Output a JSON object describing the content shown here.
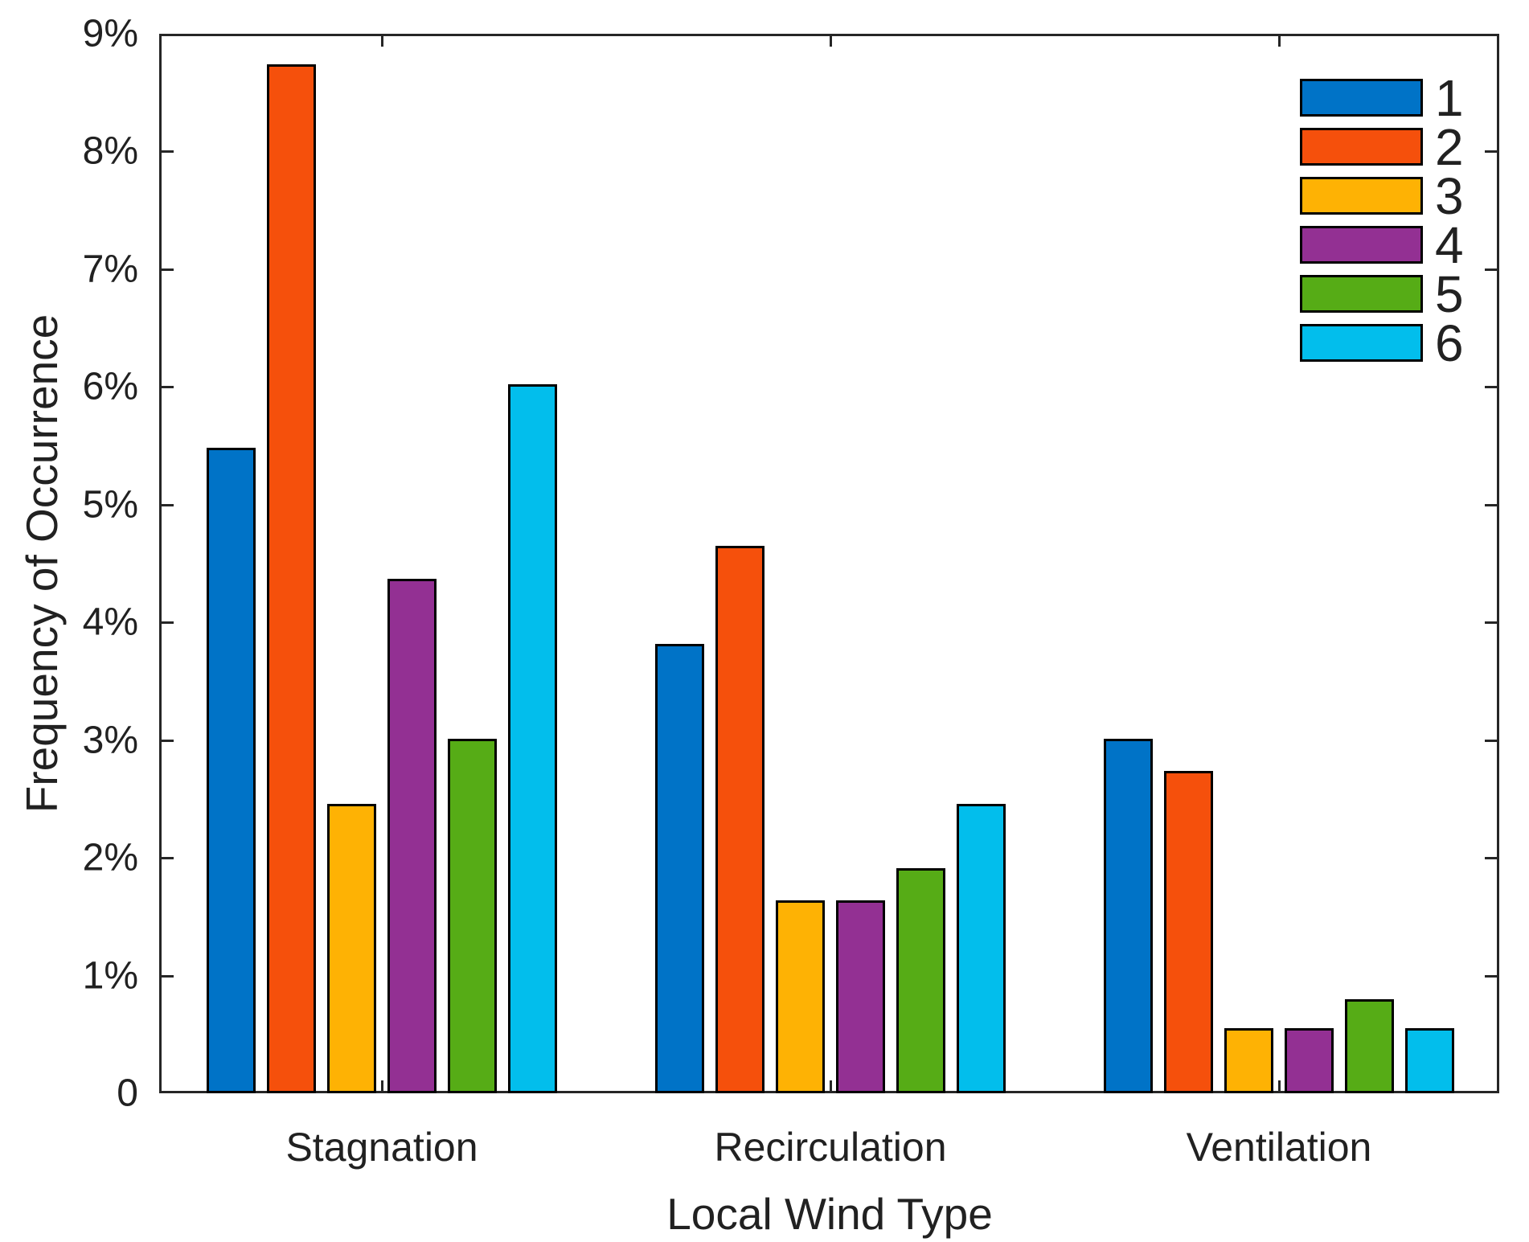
{
  "chart_data": {
    "type": "bar",
    "title": "",
    "xlabel": "Local Wind Type",
    "ylabel": "Frequency of Occurrence",
    "categories": [
      "Stagnation",
      "Recirculation",
      "Ventilation"
    ],
    "series": [
      {
        "name": "1",
        "color": "#0073C7",
        "values": [
          5.48,
          3.82,
          3.01
        ]
      },
      {
        "name": "2",
        "color": "#F5500C",
        "values": [
          8.74,
          4.65,
          2.74
        ]
      },
      {
        "name": "3",
        "color": "#FEB204",
        "values": [
          2.46,
          1.64,
          0.55
        ]
      },
      {
        "name": "4",
        "color": "#933093",
        "values": [
          4.37,
          1.64,
          0.55
        ]
      },
      {
        "name": "5",
        "color": "#56AC16",
        "values": [
          3.01,
          1.91,
          0.8
        ]
      },
      {
        "name": "6",
        "color": "#02BEEC",
        "values": [
          6.02,
          2.46,
          0.55
        ]
      }
    ],
    "ylim": [
      0,
      9
    ],
    "ytick_labels": [
      "0",
      "1%",
      "2%",
      "3%",
      "4%",
      "5%",
      "6%",
      "7%",
      "8%",
      "9%"
    ],
    "legend_position": "top-right",
    "grid": false,
    "bar_edge_color": "#000000",
    "axis_color": "#262626"
  }
}
